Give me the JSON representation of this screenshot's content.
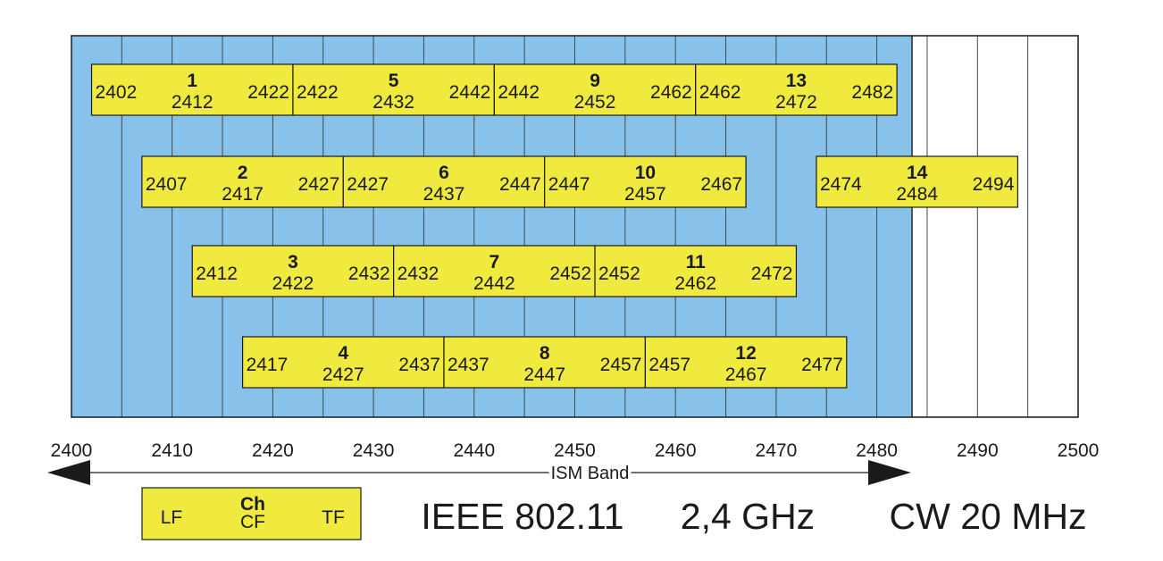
{
  "colors": {
    "band_fill": "#88c2eb",
    "channel_fill": "#f0ea3f",
    "outline": "#1a1a1a",
    "background": "#ffffff"
  },
  "axis": {
    "min": 2400,
    "max": 2500,
    "grid_step": 5,
    "ticks": [
      "2400",
      "2410",
      "2420",
      "2430",
      "2440",
      "2450",
      "2460",
      "2470",
      "2480",
      "2490",
      "2500"
    ]
  },
  "ism_band": {
    "label": "ISM Band",
    "start": 2400,
    "end": 2483.5
  },
  "channels": [
    {
      "ch": "1",
      "lf": "2402",
      "cf": "2412",
      "tf": "2422",
      "row": 1
    },
    {
      "ch": "5",
      "lf": "2422",
      "cf": "2432",
      "tf": "2442",
      "row": 1
    },
    {
      "ch": "9",
      "lf": "2442",
      "cf": "2452",
      "tf": "2462",
      "row": 1
    },
    {
      "ch": "13",
      "lf": "2462",
      "cf": "2472",
      "tf": "2482",
      "row": 1
    },
    {
      "ch": "2",
      "lf": "2407",
      "cf": "2417",
      "tf": "2427",
      "row": 2
    },
    {
      "ch": "6",
      "lf": "2427",
      "cf": "2437",
      "tf": "2447",
      "row": 2
    },
    {
      "ch": "10",
      "lf": "2447",
      "cf": "2457",
      "tf": "2467",
      "row": 2
    },
    {
      "ch": "14",
      "lf": "2474",
      "cf": "2484",
      "tf": "2494",
      "row": 2
    },
    {
      "ch": "3",
      "lf": "2412",
      "cf": "2422",
      "tf": "2432",
      "row": 3
    },
    {
      "ch": "7",
      "lf": "2432",
      "cf": "2442",
      "tf": "2452",
      "row": 3
    },
    {
      "ch": "11",
      "lf": "2452",
      "cf": "2462",
      "tf": "2472",
      "row": 3
    },
    {
      "ch": "4",
      "lf": "2417",
      "cf": "2427",
      "tf": "2437",
      "row": 4
    },
    {
      "ch": "8",
      "lf": "2437",
      "cf": "2447",
      "tf": "2457",
      "row": 4
    },
    {
      "ch": "12",
      "lf": "2457",
      "cf": "2467",
      "tf": "2477",
      "row": 4
    }
  ],
  "legend": {
    "lf": "LF",
    "ch": "Ch",
    "cf": "CF",
    "tf": "TF"
  },
  "caption": {
    "standard": "IEEE 802.11",
    "band": "2,4 GHz",
    "width": "CW 20 MHz"
  }
}
